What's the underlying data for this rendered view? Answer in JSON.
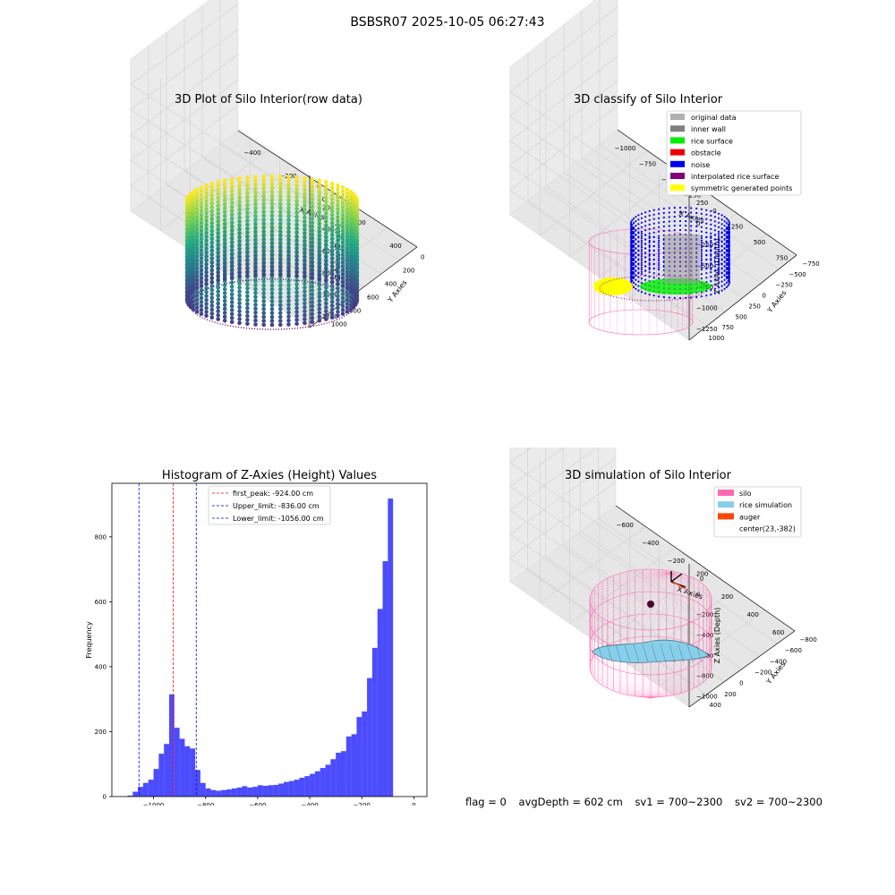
{
  "suptitle": "BSBSR07 2025-10-05 06:27:43",
  "panels": {
    "raw": {
      "title": "3D Plot of Silo Interior(row data)",
      "xlabel": "X Axies",
      "ylabel": "Y Axies",
      "zlabel": "Z Axies (Depth)",
      "xticks": [
        "-400",
        "-200",
        "0",
        "200",
        "400"
      ],
      "yticks": [
        "0",
        "200",
        "400",
        "600",
        "800",
        "1000"
      ],
      "zticks": [
        "0",
        "-200",
        "-400",
        "-600",
        "-800",
        "-1000",
        "-1200"
      ]
    },
    "classify": {
      "title": "3D classify of Silo Interior",
      "xlabel": "X Axies",
      "ylabel": "Y Axies",
      "zlabel": "Z Axies (Depth)",
      "xticks": [
        "-1000",
        "-750",
        "-500",
        "-250",
        "0",
        "250",
        "500",
        "750"
      ],
      "yticks": [
        "-750",
        "-500",
        "-250",
        "0",
        "250",
        "500",
        "750",
        "1000"
      ],
      "zticks": [
        "250",
        "0",
        "-250",
        "-500",
        "-750",
        "-1000",
        "-1250"
      ],
      "legend": [
        {
          "label": "original data",
          "color": "#b0b0b0"
        },
        {
          "label": "inner wall",
          "color": "#808080"
        },
        {
          "label": "rice surface",
          "color": "#00ee00"
        },
        {
          "label": "obstacle",
          "color": "#ee0000"
        },
        {
          "label": "noise",
          "color": "#0000ee"
        },
        {
          "label": "interpolated rice surface",
          "color": "#800080"
        },
        {
          "label": "symmetric generated points",
          "color": "#ffff00"
        }
      ]
    },
    "simulation": {
      "title": "3D simulation of Silo Interior",
      "xlabel": "X Axies",
      "ylabel": "Y Axies",
      "zlabel": "Z Axies (Depth)",
      "xticks": [
        "-600",
        "-400",
        "-200",
        "0",
        "200",
        "400",
        "600"
      ],
      "yticks": [
        "-800",
        "-600",
        "-400",
        "-200",
        "0",
        "200",
        "400"
      ],
      "zticks": [
        "200",
        "0",
        "-200",
        "-400",
        "-600",
        "-800",
        "-1000"
      ],
      "legend": [
        {
          "label": "silo",
          "color": "#ff69b4"
        },
        {
          "label": "rice simulation",
          "color": "#87ceeb"
        },
        {
          "label": "auger",
          "color": "#ff4500"
        },
        {
          "label": "center(23,-382)",
          "color": ""
        }
      ]
    }
  },
  "chart_data": {
    "type": "bar",
    "title": "Histogram of Z-Axies (Height) Values",
    "xlabel": "Depth (cm)",
    "ylabel": "Frequency",
    "xlim": [
      -1160,
      50
    ],
    "ylim": [
      0,
      965
    ],
    "xticks": [
      -1000,
      -800,
      -600,
      -400,
      -200,
      0
    ],
    "yticks": [
      0,
      200,
      400,
      600,
      800
    ],
    "bin_width": 20,
    "bar_color": "#0000ff",
    "bin_starts": [
      -1100,
      -1080,
      -1060,
      -1040,
      -1020,
      -1000,
      -980,
      -960,
      -940,
      -920,
      -900,
      -880,
      -860,
      -840,
      -820,
      -800,
      -780,
      -760,
      -740,
      -720,
      -700,
      -680,
      -660,
      -640,
      -620,
      -600,
      -580,
      -560,
      -540,
      -520,
      -500,
      -480,
      -460,
      -440,
      -420,
      -400,
      -380,
      -360,
      -340,
      -320,
      -300,
      -280,
      -260,
      -240,
      -220,
      -200,
      -180,
      -160,
      -140,
      -120,
      -100,
      -80,
      -60,
      -40,
      -20
    ],
    "counts": [
      3,
      15,
      30,
      42,
      52,
      85,
      132,
      162,
      315,
      212,
      178,
      155,
      148,
      82,
      42,
      25,
      20,
      18,
      20,
      22,
      25,
      28,
      32,
      28,
      30,
      35,
      33,
      35,
      36,
      40,
      45,
      48,
      52,
      58,
      63,
      70,
      78,
      88,
      98,
      115,
      135,
      140,
      185,
      192,
      245,
      262,
      365,
      458,
      578,
      725,
      918,
      0,
      0,
      0,
      0
    ],
    "vlines": [
      {
        "label": "first_peak: -924.00 cm",
        "x": -924,
        "color": "#ff0000"
      },
      {
        "label": "Upper_limit: -836.00 cm",
        "x": -836,
        "color": "#0000ff"
      },
      {
        "label": "Lower_limit: -1056.00 cm",
        "x": -1056,
        "color": "#0000ff"
      }
    ]
  },
  "footer": {
    "flag": "flag = 0",
    "avg": "avgDepth = 602 cm",
    "sv1": "sv1 = 700~2300",
    "sv2": "sv2 = 700~2300"
  }
}
